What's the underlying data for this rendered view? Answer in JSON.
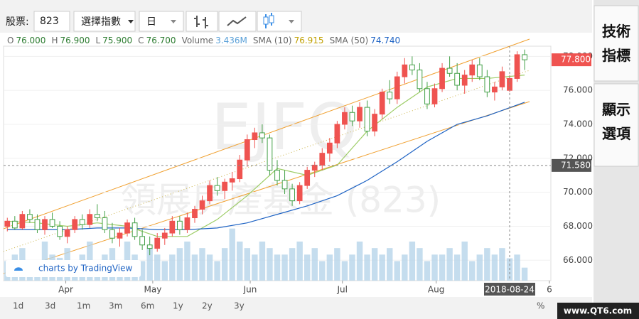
{
  "toolbar": {
    "stock_label": "股票:",
    "stock_code": "823",
    "index_select": "選擇指數",
    "interval": "日"
  },
  "side_buttons": [
    "技術\n指標",
    "顯示\n選項"
  ],
  "legend": [
    {
      "label": "O",
      "value": "76.000"
    },
    {
      "label": "H",
      "value": "76.900"
    },
    {
      "label": "L",
      "value": "75.900"
    },
    {
      "label": "C",
      "value": "76.700"
    },
    {
      "label": "Volume",
      "value": "3.436M"
    },
    {
      "label": "SMA (10)",
      "value": "76.915"
    },
    {
      "label": "SMA (50)",
      "value": "74.740"
    }
  ],
  "ranges": [
    "1d",
    "3d",
    "1m",
    "3m",
    "6m",
    "1y",
    "2y",
    "3y"
  ],
  "percent": "%",
  "crosshair_date": "2018-08-24",
  "branding": "charts by TradingView",
  "watermark_site": "www.QT6.com",
  "chart_data": {
    "type": "candlestick",
    "watermark": [
      "EJFQ",
      "領展房產基金 (823)"
    ],
    "categories": [
      null,
      null,
      null,
      null,
      null,
      null,
      null,
      null,
      null,
      null,
      null,
      null,
      null,
      null,
      null,
      null,
      null,
      null,
      null,
      null,
      null,
      null,
      null,
      null,
      null,
      null,
      null,
      null,
      null,
      null,
      null,
      null,
      null,
      null,
      null,
      null,
      null,
      null,
      null,
      null,
      null,
      null,
      null,
      null,
      null,
      null,
      null,
      null,
      null,
      null,
      null,
      null,
      null,
      null,
      null,
      null,
      null,
      null,
      null,
      null,
      null,
      null,
      null,
      null,
      null,
      null,
      null,
      null,
      null,
      null
    ],
    "open": [
      68.0,
      68.3,
      67.9,
      68.7,
      68.4,
      67.8,
      68.4,
      68.0,
      67.4,
      67.8,
      68.4,
      68.1,
      68.7,
      68.5,
      67.8,
      67.3,
      67.6,
      68.2,
      67.4,
      66.9,
      66.7,
      67.3,
      67.6,
      68.3,
      67.8,
      68.5,
      69.0,
      69.5,
      70.4,
      70.1,
      70.6,
      70.8,
      71.9,
      73.1,
      73.5,
      73.2,
      71.3,
      70.7,
      70.2,
      69.5,
      70.4,
      71.3,
      71.6,
      72.3,
      72.9,
      74.0,
      74.7,
      74.2,
      75.0,
      73.6,
      74.6,
      75.9,
      75.5,
      76.8,
      77.5,
      77.2,
      76.1,
      75.2,
      76.1,
      77.3,
      77.0,
      76.3,
      76.9,
      77.5,
      76.8,
      75.9,
      76.2,
      76.0,
      76.7,
      78.1
    ],
    "high": [
      68.5,
      68.6,
      68.9,
      69.0,
      68.7,
      68.6,
      68.8,
      68.3,
      68.0,
      68.6,
      68.7,
      69.0,
      69.3,
      68.9,
      68.2,
      67.9,
      68.4,
      68.5,
      67.8,
      67.4,
      67.6,
      67.9,
      68.6,
      68.6,
      68.8,
      69.2,
      69.8,
      70.7,
      70.9,
      70.8,
      71.2,
      72.2,
      73.4,
      73.8,
      74.0,
      73.4,
      71.9,
      71.3,
      70.5,
      70.6,
      71.5,
      71.8,
      72.6,
      73.2,
      74.2,
      75.0,
      75.1,
      75.3,
      75.4,
      74.9,
      76.1,
      76.6,
      77.1,
      77.9,
      78.0,
      77.6,
      76.5,
      76.4,
      77.6,
      78.0,
      77.6,
      77.2,
      77.8,
      77.9,
      77.2,
      76.5,
      77.4,
      76.9,
      78.3,
      78.4
    ],
    "low": [
      67.7,
      67.8,
      67.8,
      68.2,
      67.6,
      67.5,
      67.9,
      67.2,
      67.0,
      67.6,
      67.8,
      67.9,
      68.3,
      67.6,
      67.0,
      66.8,
      67.4,
      67.2,
      66.6,
      66.3,
      66.5,
      66.9,
      67.4,
      67.5,
      67.6,
      68.2,
      68.7,
      69.3,
      69.8,
      69.6,
      70.1,
      70.6,
      71.5,
      72.6,
      72.9,
      71.0,
      70.4,
      69.9,
      69.2,
      69.3,
      70.2,
      70.9,
      71.3,
      71.8,
      72.6,
      73.7,
      73.9,
      73.8,
      73.3,
      73.3,
      74.3,
      75.2,
      75.2,
      76.4,
      76.9,
      75.9,
      74.9,
      75.0,
      75.9,
      76.8,
      76.0,
      75.8,
      76.5,
      76.6,
      75.6,
      75.4,
      76.0,
      75.9,
      76.5,
      77.2
    ],
    "close": [
      68.3,
      67.9,
      68.7,
      68.4,
      67.8,
      68.4,
      68.0,
      67.4,
      67.8,
      68.4,
      68.1,
      68.7,
      68.5,
      67.8,
      67.3,
      67.6,
      68.2,
      67.4,
      66.9,
      66.7,
      67.3,
      67.6,
      68.3,
      67.8,
      68.5,
      69.0,
      69.5,
      70.4,
      70.1,
      70.6,
      70.8,
      71.9,
      73.1,
      73.5,
      73.2,
      71.3,
      70.7,
      70.2,
      69.5,
      70.4,
      71.3,
      71.6,
      72.3,
      72.9,
      74.0,
      74.7,
      74.2,
      75.0,
      73.6,
      74.6,
      75.9,
      75.5,
      76.8,
      77.5,
      77.2,
      76.1,
      75.2,
      76.1,
      77.3,
      77.0,
      76.3,
      76.9,
      77.5,
      76.8,
      75.9,
      76.2,
      77.1,
      76.7,
      78.1,
      77.8
    ],
    "up_color": "#ef5350",
    "down_color": "#43a047",
    "volume": {
      "name": "Volume",
      "color": "#b7d4ea",
      "vlim": [
        0,
        36
      ],
      "values": [
        3,
        4,
        5,
        2.5,
        3,
        6,
        4,
        3.5,
        5,
        3,
        4,
        6,
        3,
        4,
        5,
        3,
        6,
        4,
        3,
        5,
        4,
        3,
        4,
        5,
        6,
        4,
        5,
        4,
        3,
        5,
        8,
        6,
        5,
        4,
        6,
        5,
        4,
        4,
        5,
        6,
        4,
        5,
        3,
        4,
        5,
        3,
        4,
        6,
        4,
        5,
        4,
        5,
        3,
        4,
        6,
        5,
        3,
        4,
        4,
        5,
        4,
        6,
        3,
        4,
        5,
        4,
        5,
        3.436,
        4,
        2
      ]
    },
    "series": [
      {
        "name": "SMA (10)",
        "color": "#9ccc65",
        "x": [
          0,
          4,
          8,
          12,
          16,
          20,
          24,
          28,
          32,
          36,
          40,
          44,
          48,
          52,
          56,
          60,
          64,
          69
        ],
        "values": [
          68.3,
          68.2,
          68.0,
          68.2,
          68.0,
          67.4,
          67.4,
          68.4,
          69.8,
          71.4,
          71.0,
          71.6,
          73.6,
          75.0,
          76.2,
          76.7,
          76.7,
          76.9
        ]
      },
      {
        "name": "SMA (50)",
        "color": "#1e63c4",
        "x": [
          0,
          4,
          8,
          12,
          16,
          20,
          24,
          28,
          32,
          36,
          40,
          44,
          48,
          52,
          56,
          60,
          64,
          69
        ],
        "values": [
          67.8,
          67.8,
          67.8,
          67.9,
          67.9,
          67.8,
          67.8,
          67.9,
          68.2,
          68.7,
          69.2,
          69.8,
          70.7,
          71.8,
          73.0,
          74.0,
          74.5,
          75.3
        ]
      }
    ],
    "xlim": [
      -0.5,
      72.5
    ],
    "xticks": [
      {
        "value": 7.8,
        "label": "Apr"
      },
      {
        "value": 19.4,
        "label": "May"
      },
      {
        "value": 32.4,
        "label": "Jun"
      },
      {
        "value": 44.7,
        "label": "Jul"
      },
      {
        "value": 57.2,
        "label": "Aug"
      },
      {
        "value": 72.3,
        "label": "6"
      }
    ],
    "ylim": [
      64.8,
      78.6
    ],
    "yticks": [
      {
        "value": 66,
        "label": "66.000"
      },
      {
        "value": 68,
        "label": "68.000"
      },
      {
        "value": 70,
        "label": "70.000"
      },
      {
        "value": 72,
        "label": "72.000"
      },
      {
        "value": 74,
        "label": "74.000"
      },
      {
        "value": 76,
        "label": "76.000"
      },
      {
        "value": 78,
        "label": "78.000"
      }
    ],
    "last_price": {
      "value": 77.8,
      "label": "77.800"
    },
    "crosshair_price": {
      "value": 71.58,
      "label": "71.580"
    }
  }
}
